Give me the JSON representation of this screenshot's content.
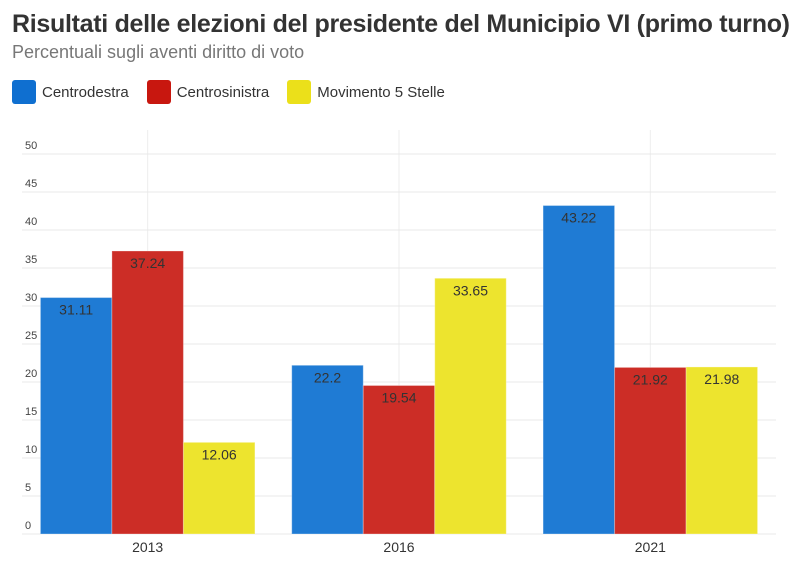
{
  "chart_data": {
    "type": "bar",
    "title": "Risultati delle elezioni del presidente del Municipio VI (primo turno)",
    "subtitle": "Percentuali sugli aventi diritto di voto",
    "categories": [
      "2013",
      "2016",
      "2021"
    ],
    "series": [
      {
        "name": "Centrodestra",
        "color": "#1f7bd4",
        "legend_color": "#0f6fd0",
        "values": [
          31.11,
          22.2,
          43.22
        ],
        "labels": [
          "31.11",
          "22.2",
          "43.22"
        ]
      },
      {
        "name": "Centrosinistra",
        "color": "#cc2d26",
        "legend_color": "#c8170f",
        "values": [
          37.24,
          19.54,
          21.92
        ],
        "labels": [
          "37.24",
          "19.54",
          "21.92"
        ]
      },
      {
        "name": "Movimento 5 Stelle",
        "color": "#ede42e",
        "legend_color": "#ebe01a",
        "values": [
          12.06,
          33.65,
          21.98
        ],
        "labels": [
          "12.06",
          "33.65",
          "21.98"
        ]
      }
    ],
    "yticks": [
      "0",
      "5",
      "10",
      "15",
      "20",
      "25",
      "30",
      "35",
      "40",
      "45",
      "50"
    ],
    "ylim": [
      0,
      50
    ],
    "xlabel": "",
    "ylabel": "",
    "grid": true,
    "legend": "top-left"
  }
}
